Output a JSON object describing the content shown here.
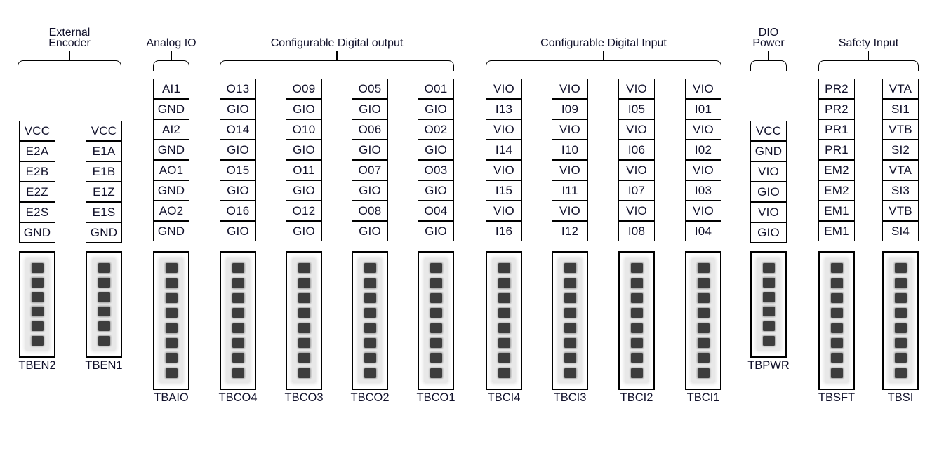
{
  "colors": {
    "line": "#000000",
    "text": "#10102a",
    "pin": "#3d3d3d",
    "pin_strip": "#e8e8e8",
    "background": "#ffffff"
  },
  "groups": [
    {
      "title_lines": [
        "External",
        "Encoder"
      ],
      "blocks": [
        {
          "name": "TBEN2",
          "pins": [
            "VCC",
            "E2A",
            "E2B",
            "E2Z",
            "E2S",
            "GND"
          ],
          "connector_pins": 6
        },
        {
          "name": "TBEN1",
          "pins": [
            "VCC",
            "E1A",
            "E1B",
            "E1Z",
            "E1S",
            "GND"
          ],
          "connector_pins": 6
        }
      ]
    },
    {
      "title_lines": [
        "Analog IO"
      ],
      "blocks": [
        {
          "name": "TBAIO",
          "pins": [
            "AI1",
            "GND",
            "AI2",
            "GND",
            "AO1",
            "GND",
            "AO2",
            "GND"
          ],
          "connector_pins": 8
        }
      ]
    },
    {
      "title_lines": [
        "Configurable Digital output"
      ],
      "blocks": [
        {
          "name": "TBCO4",
          "pins": [
            "O13",
            "GIO",
            "O14",
            "GIO",
            "O15",
            "GIO",
            "O16",
            "GIO"
          ],
          "connector_pins": 8
        },
        {
          "name": "TBCO3",
          "pins": [
            "O09",
            "GIO",
            "O10",
            "GIO",
            "O11",
            "GIO",
            "O12",
            "GIO"
          ],
          "connector_pins": 8
        },
        {
          "name": "TBCO2",
          "pins": [
            "O05",
            "GIO",
            "O06",
            "GIO",
            "O07",
            "GIO",
            "O08",
            "GIO"
          ],
          "connector_pins": 8
        },
        {
          "name": "TBCO1",
          "pins": [
            "O01",
            "GIO",
            "O02",
            "GIO",
            "O03",
            "GIO",
            "O04",
            "GIO"
          ],
          "connector_pins": 8
        }
      ]
    },
    {
      "title_lines": [
        "Configurable Digital Input"
      ],
      "blocks": [
        {
          "name": "TBCI4",
          "pins": [
            "VIO",
            "I13",
            "VIO",
            "I14",
            "VIO",
            "I15",
            "VIO",
            "I16"
          ],
          "connector_pins": 8
        },
        {
          "name": "TBCI3",
          "pins": [
            "VIO",
            "I09",
            "VIO",
            "I10",
            "VIO",
            "I11",
            "VIO",
            "I12"
          ],
          "connector_pins": 8
        },
        {
          "name": "TBCI2",
          "pins": [
            "VIO",
            "I05",
            "VIO",
            "I06",
            "VIO",
            "I07",
            "VIO",
            "I08"
          ],
          "connector_pins": 8
        },
        {
          "name": "TBCI1",
          "pins": [
            "VIO",
            "I01",
            "VIO",
            "I02",
            "VIO",
            "I03",
            "VIO",
            "I04"
          ],
          "connector_pins": 8
        }
      ]
    },
    {
      "title_lines": [
        "DIO",
        "Power"
      ],
      "blocks": [
        {
          "name": "TBPWR",
          "pins": [
            "VCC",
            "GND",
            "VIO",
            "GIO",
            "VIO",
            "GIO"
          ],
          "connector_pins": 6
        }
      ]
    },
    {
      "title_lines": [
        "Safety Input"
      ],
      "blocks": [
        {
          "name": "TBSFT",
          "pins": [
            "PR2",
            "PR2",
            "PR1",
            "PR1",
            "EM2",
            "EM2",
            "EM1",
            "EM1"
          ],
          "connector_pins": 8
        },
        {
          "name": "TBSI",
          "pins": [
            "VTA",
            "SI1",
            "VTB",
            "SI2",
            "VTA",
            "SI3",
            "VTB",
            "SI4"
          ],
          "connector_pins": 8
        }
      ]
    }
  ]
}
